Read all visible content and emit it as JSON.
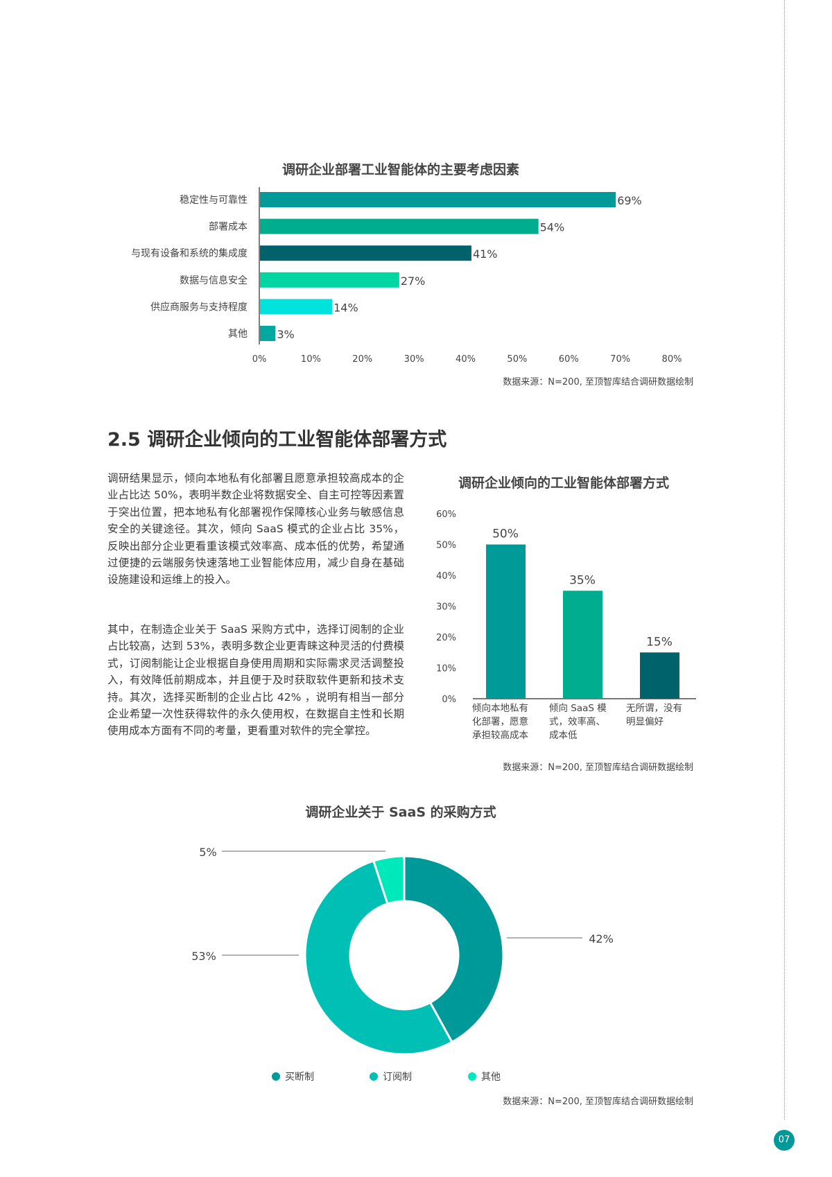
{
  "colors": {
    "teal": "#009a98",
    "green": "#00ad8e",
    "dark": "#00626a",
    "mint": "#00d6a2",
    "cyan": "#00e3dc",
    "teal2": "#00a8a2",
    "donut_buy": "#00999a",
    "donut_sub": "#00bfb4",
    "donut_other": "#00e9bb"
  },
  "section": {
    "heading": "2.5 调研企业倾向的工业智能体部署方式",
    "paragraph1": "调研结果显示，倾向本地私有化部署且愿意承担较高成本的企业占比达 50%，表明半数企业将数据安全、自主可控等因素置于突出位置，把本地私有化部署视作保障核心业务与敏感信息安全的关键途径。其次，倾向 SaaS 模式的企业占比 35%，反映出部分企业更看重该模式效率高、成本低的优势，希望通过便捷的云端服务快速落地工业智能体应用，减少自身在基础设施建设和运维上的投入。",
    "paragraph2": "其中，在制造企业关于 SaaS 采购方式中，选择订阅制的企业占比较高，达到 53%，表明多数企业更青睐这种灵活的付费模式，订阅制能让企业根据自身使用周期和实际需求灵活调整投入，有效降低前期成本，并且便于及时获取软件更新和技术支持。其次，选择买断制的企业占比 42% ，说明有相当一部分企业希望一次性获得软件的永久使用权，在数据自主性和长期使用成本方面有不同的考量，更看重对软件的完全掌控。"
  },
  "page_number": "07",
  "chart_data": [
    {
      "type": "bar",
      "orientation": "horizontal",
      "title": "调研企业部署工业智能体的主要考虑因素",
      "categories": [
        "稳定性与可靠性",
        "部署成本",
        "与现有设备和系统的集成度",
        "数据与信息安全",
        "供应商服务与支持程度",
        "其他"
      ],
      "values": [
        69,
        54,
        41,
        27,
        14,
        3
      ],
      "value_labels": [
        "69%",
        "54%",
        "41%",
        "27%",
        "14%",
        "3%"
      ],
      "xlim": [
        0,
        80
      ],
      "ticks": [
        "0%",
        "10%",
        "20%",
        "30%",
        "40%",
        "50%",
        "60%",
        "70%",
        "80%"
      ],
      "source": "数据来源：N=200, 至顶智库结合调研数据绘制",
      "grid": false
    },
    {
      "type": "bar",
      "title": "调研企业倾向的工业智能体部署方式",
      "categories": [
        "倾向本地私有化部署，愿意承担较高成本",
        "倾向 SaaS 模式，效率高、成本低",
        "无所谓，没有明显偏好"
      ],
      "category_lines": [
        [
          "倾向本地私有",
          "化部署，愿意",
          "承担较高成本"
        ],
        [
          "倾向 SaaS 模",
          "式，效率高、",
          "成本低"
        ],
        [
          "无所谓，没有",
          "明显偏好"
        ]
      ],
      "values": [
        50,
        35,
        15
      ],
      "value_labels": [
        "50%",
        "35%",
        "15%"
      ],
      "ylim": [
        0,
        60
      ],
      "ticks": [
        "0%",
        "10%",
        "20%",
        "30%",
        "40%",
        "50%",
        "60%"
      ],
      "source": "数据来源：N=200, 至顶智库结合调研数据绘制",
      "grid": false
    },
    {
      "type": "pie",
      "donut": true,
      "title": "调研企业关于 SaaS 的采购方式",
      "slices": [
        {
          "name": "买断制",
          "value": 42,
          "label": "42%"
        },
        {
          "name": "订阅制",
          "value": 53,
          "label": "53%"
        },
        {
          "name": "其他",
          "value": 5,
          "label": "5%"
        }
      ],
      "legend": "bottom",
      "source": "数据来源：N=200, 至顶智库结合调研数据绘制"
    }
  ]
}
